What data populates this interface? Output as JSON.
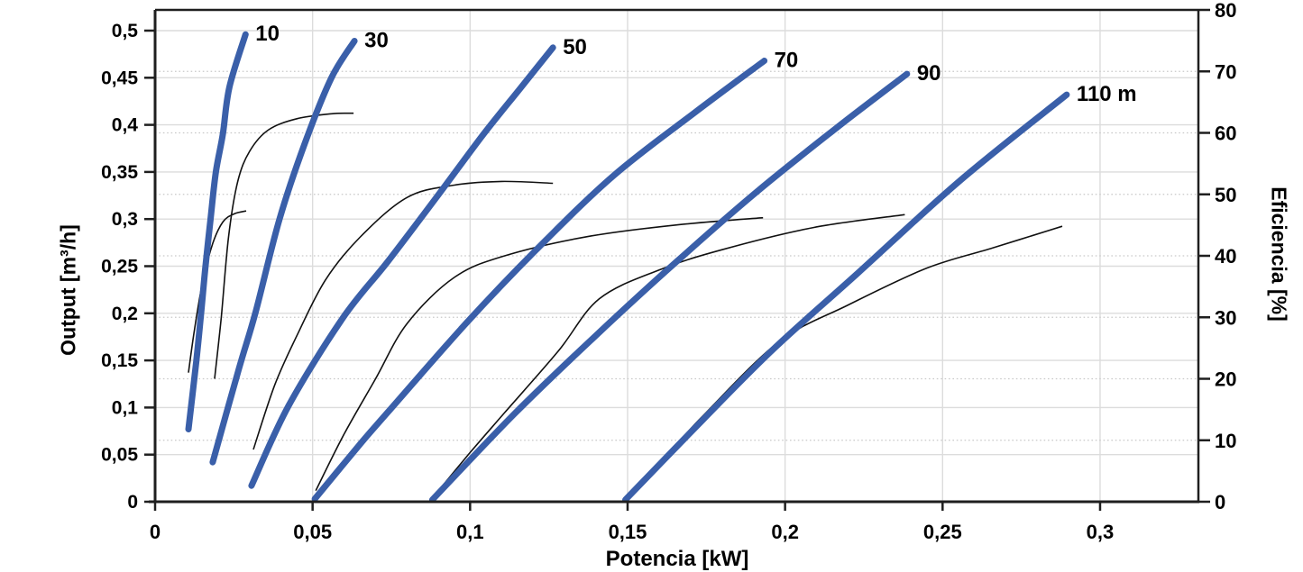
{
  "chart_data": {
    "type": "line",
    "title": "",
    "xlabel": "Potencia [kW]",
    "ylabel_left": "Output [m³/h]",
    "ylabel_right": "Eficiencia [%]",
    "xlim": [
      0,
      0.3315
    ],
    "ylim_left": [
      0,
      0.5
    ],
    "ylim_right": [
      0,
      80
    ],
    "grid": {
      "solid_from": "left-axis ticks",
      "dotted_from": "right-axis ticks"
    },
    "colors": {
      "head_curve": "#3A5FA9",
      "efficiency_curve": "#111111",
      "grid_solid": "#DCDCDC",
      "grid_dotted": "#C9C9C9",
      "axis": "#1F1F1F",
      "label": "#000000"
    },
    "x_axis": {
      "ticks": [
        {
          "v": 0.0,
          "label": "0"
        },
        {
          "v": 0.05,
          "label": "0,05"
        },
        {
          "v": 0.1,
          "label": "0,1"
        },
        {
          "v": 0.15,
          "label": "0,15"
        },
        {
          "v": 0.2,
          "label": "0,2"
        },
        {
          "v": 0.25,
          "label": "0,25"
        },
        {
          "v": 0.3,
          "label": "0,3"
        }
      ]
    },
    "y_axis_left": {
      "ticks": [
        {
          "v": 0.0,
          "label": "0"
        },
        {
          "v": 0.05,
          "label": "0,05"
        },
        {
          "v": 0.1,
          "label": "0,1"
        },
        {
          "v": 0.15,
          "label": "0,15"
        },
        {
          "v": 0.2,
          "label": "0,2"
        },
        {
          "v": 0.25,
          "label": "0,25"
        },
        {
          "v": 0.3,
          "label": "0,3"
        },
        {
          "v": 0.35,
          "label": "0,35"
        },
        {
          "v": 0.4,
          "label": "0,4"
        },
        {
          "v": 0.45,
          "label": "0,45"
        },
        {
          "v": 0.5,
          "label": "0,5"
        }
      ]
    },
    "y_axis_right": {
      "ticks": [
        {
          "v": 0,
          "label": "0"
        },
        {
          "v": 10,
          "label": "10"
        },
        {
          "v": 20,
          "label": "20"
        },
        {
          "v": 30,
          "label": "30"
        },
        {
          "v": 40,
          "label": "40"
        },
        {
          "v": 50,
          "label": "50"
        },
        {
          "v": 60,
          "label": "60"
        },
        {
          "v": 70,
          "label": "70"
        },
        {
          "v": 80,
          "label": "80"
        }
      ]
    },
    "head_curves": [
      {
        "label": "10",
        "head_m": 10,
        "axis": "left",
        "points": [
          [
            0.0106,
            0.077
          ],
          [
            0.0131,
            0.15
          ],
          [
            0.0146,
            0.2
          ],
          [
            0.016,
            0.25
          ],
          [
            0.0176,
            0.3
          ],
          [
            0.0193,
            0.35
          ],
          [
            0.0215,
            0.39
          ],
          [
            0.0236,
            0.44
          ],
          [
            0.0287,
            0.496
          ]
        ]
      },
      {
        "label": "30",
        "head_m": 30,
        "axis": "left",
        "points": [
          [
            0.0183,
            0.042
          ],
          [
            0.0265,
            0.14
          ],
          [
            0.0318,
            0.2
          ],
          [
            0.0395,
            0.3
          ],
          [
            0.0475,
            0.38
          ],
          [
            0.056,
            0.45
          ],
          [
            0.0633,
            0.489
          ]
        ]
      },
      {
        "label": "50",
        "head_m": 50,
        "axis": "left",
        "points": [
          [
            0.0306,
            0.017
          ],
          [
            0.0424,
            0.102
          ],
          [
            0.0596,
            0.195
          ],
          [
            0.0739,
            0.255
          ],
          [
            0.0891,
            0.322
          ],
          [
            0.104,
            0.389
          ],
          [
            0.1155,
            0.437
          ],
          [
            0.1263,
            0.482
          ]
        ]
      },
      {
        "label": "70",
        "head_m": 70,
        "axis": "left",
        "points": [
          [
            0.0507,
            0.003
          ],
          [
            0.0653,
            0.062
          ],
          [
            0.0739,
            0.095
          ],
          [
            0.0989,
            0.19
          ],
          [
            0.1209,
            0.267
          ],
          [
            0.1455,
            0.346
          ],
          [
            0.1713,
            0.413
          ],
          [
            0.1934,
            0.468
          ]
        ]
      },
      {
        "label": "90",
        "head_m": 90,
        "axis": "left",
        "points": [
          [
            0.088,
            0.002
          ],
          [
            0.114,
            0.093
          ],
          [
            0.1398,
            0.176
          ],
          [
            0.1656,
            0.255
          ],
          [
            0.1914,
            0.33
          ],
          [
            0.2172,
            0.399
          ],
          [
            0.2387,
            0.454
          ]
        ]
      },
      {
        "label": "110 m",
        "head_m": 110,
        "axis": "left",
        "points": [
          [
            0.1493,
            0.002
          ],
          [
            0.1742,
            0.088
          ],
          [
            0.1966,
            0.163
          ],
          [
            0.2229,
            0.242
          ],
          [
            0.2556,
            0.341
          ],
          [
            0.2894,
            0.432
          ]
        ]
      }
    ],
    "efficiency_curves": [
      {
        "head": "10",
        "axis": "right",
        "points": [
          [
            0.0106,
            21.0
          ],
          [
            0.0125,
            28.0
          ],
          [
            0.0152,
            36.0
          ],
          [
            0.0183,
            42.0
          ],
          [
            0.0215,
            45.5
          ],
          [
            0.025,
            46.8
          ],
          [
            0.0289,
            47.3
          ]
        ]
      },
      {
        "head": "30",
        "axis": "right",
        "points": [
          [
            0.0189,
            20.0
          ],
          [
            0.021,
            30.0
          ],
          [
            0.0233,
            43.0
          ],
          [
            0.0262,
            52.0
          ],
          [
            0.03,
            57.0
          ],
          [
            0.036,
            60.5
          ],
          [
            0.045,
            62.3
          ],
          [
            0.056,
            63.1
          ],
          [
            0.063,
            63.2
          ]
        ]
      },
      {
        "head": "50",
        "axis": "right",
        "points": [
          [
            0.0312,
            8.5
          ],
          [
            0.038,
            19.0
          ],
          [
            0.045,
            27.0
          ],
          [
            0.054,
            36.0
          ],
          [
            0.065,
            43.0
          ],
          [
            0.08,
            49.5
          ],
          [
            0.095,
            51.5
          ],
          [
            0.11,
            52.1
          ],
          [
            0.1263,
            51.8
          ]
        ]
      },
      {
        "head": "70",
        "axis": "right",
        "points": [
          [
            0.051,
            1.8
          ],
          [
            0.06,
            11.0
          ],
          [
            0.07,
            20.0
          ],
          [
            0.08,
            29.0
          ],
          [
            0.095,
            36.5
          ],
          [
            0.111,
            40.0
          ],
          [
            0.137,
            43.1
          ],
          [
            0.165,
            45.0
          ],
          [
            0.193,
            46.2
          ]
        ]
      },
      {
        "head": "90",
        "axis": "right",
        "points": [
          [
            0.0879,
            0.5
          ],
          [
            0.1,
            8.0
          ],
          [
            0.111,
            14.5
          ],
          [
            0.128,
            24.5
          ],
          [
            0.141,
            33.0
          ],
          [
            0.16,
            37.7
          ],
          [
            0.18,
            41.0
          ],
          [
            0.209,
            44.6
          ],
          [
            0.238,
            46.7
          ]
        ]
      },
      {
        "head": "110",
        "axis": "right",
        "points": [
          [
            0.1492,
            0.5
          ],
          [
            0.165,
            9.0
          ],
          [
            0.174,
            14.0
          ],
          [
            0.198,
            26.0
          ],
          [
            0.22,
            32.0
          ],
          [
            0.245,
            38.0
          ],
          [
            0.266,
            41.3
          ],
          [
            0.288,
            44.8
          ]
        ]
      }
    ]
  }
}
